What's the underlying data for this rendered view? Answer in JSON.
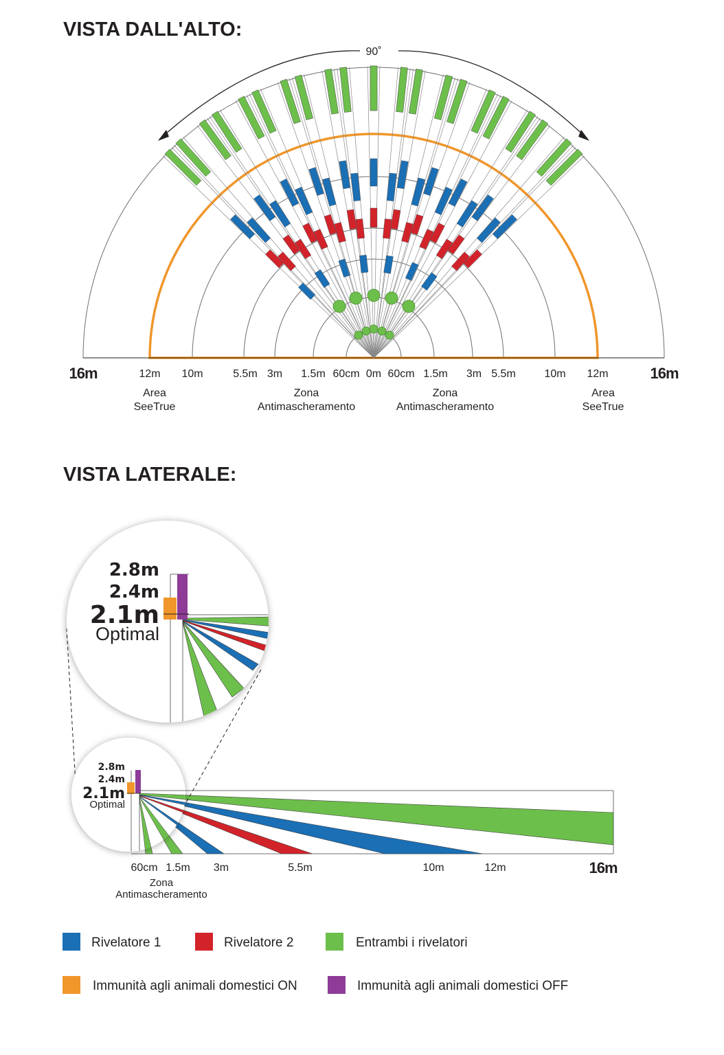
{
  "top_view": {
    "title": "VISTA DALL'ALTO:",
    "angle_label": "90˚",
    "distance_labels": {
      "left": [
        "16m",
        "12m",
        "10m",
        "5.5m",
        "3m",
        "1.5m",
        "60cm"
      ],
      "center": "0m",
      "right": [
        "60cm",
        "1.5m",
        "3m",
        "5.5m",
        "10m",
        "12m",
        "16m"
      ]
    },
    "captions": [
      {
        "line1": "Area",
        "line2": "SeeTrue"
      },
      {
        "line1": "Zona",
        "line2": "Antimascheramento"
      },
      {
        "line1": "Zona",
        "line2": "Antimascheramento"
      },
      {
        "line1": "Area",
        "line2": "SeeTrue"
      }
    ]
  },
  "side_view": {
    "title": "VISTA LATERALE:",
    "heights": [
      "2.8m",
      "2.4m",
      "2.1m"
    ],
    "optimal_label": "Optimal",
    "distance_labels": [
      "60cm",
      "1.5m",
      "3m",
      "5.5m",
      "10m",
      "12m",
      "16m"
    ],
    "zone_caption": {
      "line1": "Zona",
      "line2": "Antimascheramento"
    }
  },
  "legend": [
    {
      "color": "#1a6fb5",
      "label": "Rivelatore 1"
    },
    {
      "color": "#d2232a",
      "label": "Rivelatore 2"
    },
    {
      "color": "#6dbf4b",
      "label": "Entrambi i rivelatori"
    },
    {
      "color": "#f0962b",
      "label": "Immunità agli animali domestici ON"
    },
    {
      "color": "#8e3c97",
      "label": "Immunità agli animali domestici OFF"
    }
  ],
  "colors": {
    "blue": "#1a6fb5",
    "red": "#d2232a",
    "green": "#6dbf4b",
    "orange": "#f0962b",
    "purple": "#8e3c97",
    "line": "#6d6e71"
  }
}
